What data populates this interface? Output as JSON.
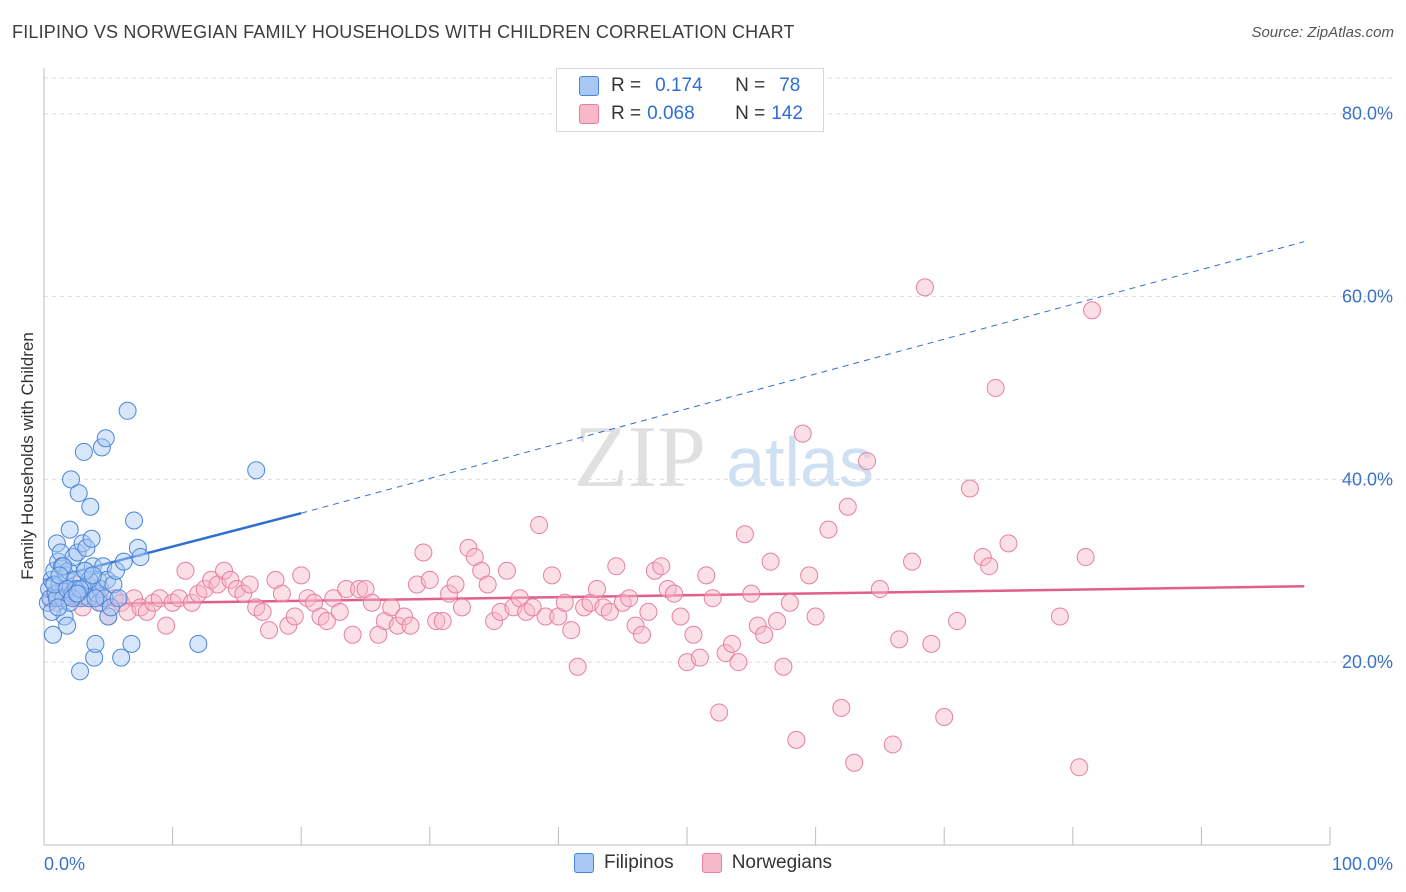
{
  "title": "FILIPINO VS NORWEGIAN FAMILY HOUSEHOLDS WITH CHILDREN CORRELATION CHART",
  "source": "Source: ZipAtlas.com",
  "watermark": {
    "zip": "ZIP",
    "atlas": "atlas"
  },
  "legend_top": [
    {
      "r_label": "R =",
      "r_value": "0.174",
      "n_label": "N =",
      "n_value": "78"
    },
    {
      "r_label": "R =",
      "r_value": "0.068",
      "n_label": "N =",
      "n_value": "142"
    }
  ],
  "legend_bottom": [
    {
      "label": "Filipinos"
    },
    {
      "label": "Norwegians"
    }
  ],
  "colors": {
    "filipino_fill": "#a8c8f5",
    "filipino_stroke": "#4a86d8",
    "filipino_line": "#2f6fd0",
    "norwegian_fill": "#f7b8ca",
    "norwegian_stroke": "#e87fa0",
    "norwegian_line": "#e0608a",
    "axis_text": "#3a72c8"
  },
  "chart_data": {
    "type": "scatter",
    "title": "FILIPINO VS NORWEGIAN FAMILY HOUSEHOLDS WITH CHILDREN CORRELATION CHART",
    "xlabel": "",
    "ylabel": "Family Households with Children",
    "xlim": [
      0,
      100
    ],
    "ylim": [
      0,
      85
    ],
    "x_tick_labels": [
      "0.0%",
      "100.0%"
    ],
    "y_ticks": [
      20,
      40,
      60,
      80
    ],
    "y_tick_labels": [
      "20.0%",
      "40.0%",
      "60.0%",
      "80.0%"
    ],
    "grid": true,
    "series": [
      {
        "name": "Filipinos",
        "trend": {
          "x0": 0,
          "y0": 29.0,
          "x1": 20,
          "y1": 36.3,
          "dashed_to_x": 98,
          "dashed_to_y": 66.0
        },
        "points": [
          [
            0.3,
            26.5
          ],
          [
            0.4,
            28.0
          ],
          [
            0.5,
            27.0
          ],
          [
            0.6,
            29.0
          ],
          [
            0.7,
            23.0
          ],
          [
            0.8,
            30.0
          ],
          [
            0.9,
            27.5
          ],
          [
            1.0,
            33.0
          ],
          [
            1.1,
            31.0
          ],
          [
            1.2,
            28.5
          ],
          [
            1.3,
            32.0
          ],
          [
            1.4,
            30.5
          ],
          [
            1.5,
            27.0
          ],
          [
            1.6,
            25.0
          ],
          [
            1.7,
            29.5
          ],
          [
            1.8,
            24.0
          ],
          [
            1.9,
            30.0
          ],
          [
            2.0,
            34.5
          ],
          [
            2.1,
            40.0
          ],
          [
            2.2,
            27.5
          ],
          [
            2.3,
            31.5
          ],
          [
            2.4,
            29.0
          ],
          [
            2.5,
            28.0
          ],
          [
            2.6,
            32.0
          ],
          [
            2.7,
            38.5
          ],
          [
            2.8,
            19.0
          ],
          [
            2.9,
            27.0
          ],
          [
            3.0,
            33.0
          ],
          [
            3.1,
            43.0
          ],
          [
            3.2,
            30.0
          ],
          [
            3.3,
            32.5
          ],
          [
            3.4,
            28.5
          ],
          [
            3.5,
            27.0
          ],
          [
            3.6,
            37.0
          ],
          [
            3.7,
            33.5
          ],
          [
            3.8,
            30.5
          ],
          [
            3.9,
            20.5
          ],
          [
            4.0,
            22.0
          ],
          [
            4.1,
            27.5
          ],
          [
            4.2,
            29.0
          ],
          [
            4.3,
            26.5
          ],
          [
            4.4,
            28.0
          ],
          [
            4.5,
            43.5
          ],
          [
            4.6,
            30.5
          ],
          [
            4.7,
            27.0
          ],
          [
            4.8,
            44.5
          ],
          [
            4.9,
            29.0
          ],
          [
            5.0,
            25.0
          ],
          [
            5.2,
            26.0
          ],
          [
            5.4,
            28.5
          ],
          [
            5.6,
            30.0
          ],
          [
            5.8,
            27.0
          ],
          [
            6.0,
            20.5
          ],
          [
            6.2,
            31.0
          ],
          [
            6.5,
            47.5
          ],
          [
            6.8,
            22.0
          ],
          [
            7.0,
            35.5
          ],
          [
            7.3,
            32.5
          ],
          [
            7.5,
            31.5
          ],
          [
            12.0,
            22.0
          ],
          [
            16.5,
            41.0
          ],
          [
            0.6,
            25.5
          ],
          [
            1.0,
            27.0
          ],
          [
            1.5,
            30.5
          ],
          [
            2.0,
            26.5
          ],
          [
            2.5,
            27.5
          ],
          [
            3.0,
            28.0
          ],
          [
            3.5,
            29.0
          ],
          [
            4.0,
            27.0
          ],
          [
            0.8,
            28.5
          ],
          [
            1.2,
            29.5
          ],
          [
            1.8,
            28.0
          ],
          [
            2.2,
            27.0
          ],
          [
            2.8,
            28.0
          ],
          [
            3.2,
            30.0
          ],
          [
            1.1,
            26.0
          ],
          [
            2.6,
            27.5
          ],
          [
            3.8,
            29.5
          ]
        ]
      },
      {
        "name": "Norwegians",
        "trend": {
          "x0": 0,
          "y0": 26.3,
          "x1": 98,
          "y1": 28.3
        },
        "points": [
          [
            0.5,
            27.0
          ],
          [
            1.0,
            26.5
          ],
          [
            1.5,
            28.0
          ],
          [
            2.0,
            27.5
          ],
          [
            2.5,
            28.5
          ],
          [
            3.0,
            26.0
          ],
          [
            3.5,
            27.0
          ],
          [
            4.0,
            28.0
          ],
          [
            4.5,
            26.5
          ],
          [
            5.0,
            25.0
          ],
          [
            5.5,
            27.0
          ],
          [
            6.0,
            26.5
          ],
          [
            6.5,
            25.5
          ],
          [
            7.0,
            27.0
          ],
          [
            7.5,
            26.0
          ],
          [
            8.0,
            25.5
          ],
          [
            8.5,
            26.5
          ],
          [
            9.0,
            27.0
          ],
          [
            9.5,
            24.0
          ],
          [
            10.0,
            26.5
          ],
          [
            10.5,
            27.0
          ],
          [
            11.0,
            30.0
          ],
          [
            11.5,
            26.5
          ],
          [
            12.0,
            27.5
          ],
          [
            12.5,
            28.0
          ],
          [
            13.0,
            29.0
          ],
          [
            13.5,
            28.5
          ],
          [
            14.0,
            30.0
          ],
          [
            14.5,
            29.0
          ],
          [
            15.0,
            28.0
          ],
          [
            15.5,
            27.5
          ],
          [
            16.0,
            28.5
          ],
          [
            16.5,
            26.0
          ],
          [
            17.0,
            25.5
          ],
          [
            17.5,
            23.5
          ],
          [
            18.0,
            29.0
          ],
          [
            18.5,
            27.5
          ],
          [
            19.0,
            24.0
          ],
          [
            19.5,
            25.0
          ],
          [
            20.0,
            29.5
          ],
          [
            20.5,
            27.0
          ],
          [
            21.0,
            26.5
          ],
          [
            21.5,
            25.0
          ],
          [
            22.0,
            24.5
          ],
          [
            22.5,
            27.0
          ],
          [
            23.0,
            25.5
          ],
          [
            23.5,
            28.0
          ],
          [
            24.0,
            23.0
          ],
          [
            24.5,
            28.0
          ],
          [
            25.0,
            28.0
          ],
          [
            25.5,
            26.5
          ],
          [
            26.0,
            23.0
          ],
          [
            26.5,
            24.5
          ],
          [
            27.0,
            26.0
          ],
          [
            27.5,
            24.0
          ],
          [
            28.0,
            25.0
          ],
          [
            28.5,
            24.0
          ],
          [
            29.0,
            28.5
          ],
          [
            29.5,
            32.0
          ],
          [
            30.0,
            29.0
          ],
          [
            30.5,
            24.5
          ],
          [
            31.0,
            24.5
          ],
          [
            31.5,
            27.5
          ],
          [
            32.0,
            28.5
          ],
          [
            32.5,
            26.0
          ],
          [
            33.0,
            32.5
          ],
          [
            33.5,
            31.5
          ],
          [
            34.0,
            30.0
          ],
          [
            34.5,
            28.5
          ],
          [
            35.0,
            24.5
          ],
          [
            35.5,
            25.5
          ],
          [
            36.0,
            30.0
          ],
          [
            36.5,
            26.0
          ],
          [
            37.0,
            27.0
          ],
          [
            37.5,
            25.5
          ],
          [
            38.0,
            26.0
          ],
          [
            38.5,
            35.0
          ],
          [
            39.0,
            25.0
          ],
          [
            39.5,
            29.5
          ],
          [
            40.0,
            25.0
          ],
          [
            40.5,
            26.5
          ],
          [
            41.0,
            23.5
          ],
          [
            41.5,
            19.5
          ],
          [
            42.0,
            26.0
          ],
          [
            42.5,
            26.5
          ],
          [
            43.0,
            28.0
          ],
          [
            43.5,
            26.0
          ],
          [
            44.0,
            25.5
          ],
          [
            44.5,
            30.5
          ],
          [
            45.0,
            26.5
          ],
          [
            45.5,
            27.0
          ],
          [
            46.0,
            24.0
          ],
          [
            46.5,
            23.0
          ],
          [
            47.0,
            25.5
          ],
          [
            47.5,
            30.0
          ],
          [
            48.0,
            30.5
          ],
          [
            48.5,
            28.0
          ],
          [
            49.0,
            27.5
          ],
          [
            49.5,
            25.0
          ],
          [
            50.0,
            20.0
          ],
          [
            50.5,
            23.0
          ],
          [
            51.0,
            20.5
          ],
          [
            51.5,
            29.5
          ],
          [
            52.0,
            27.0
          ],
          [
            52.5,
            14.5
          ],
          [
            53.0,
            21.0
          ],
          [
            53.5,
            22.0
          ],
          [
            54.0,
            20.0
          ],
          [
            54.5,
            34.0
          ],
          [
            55.0,
            27.5
          ],
          [
            55.5,
            24.0
          ],
          [
            56.0,
            23.0
          ],
          [
            56.5,
            31.0
          ],
          [
            57.0,
            24.5
          ],
          [
            57.5,
            19.5
          ],
          [
            58.0,
            26.5
          ],
          [
            58.5,
            11.5
          ],
          [
            59.0,
            45.0
          ],
          [
            59.5,
            29.5
          ],
          [
            60.0,
            25.0
          ],
          [
            61.0,
            34.5
          ],
          [
            62.0,
            15.0
          ],
          [
            62.5,
            37.0
          ],
          [
            63.0,
            9.0
          ],
          [
            64.0,
            42.0
          ],
          [
            65.0,
            28.0
          ],
          [
            66.0,
            11.0
          ],
          [
            66.5,
            22.5
          ],
          [
            67.5,
            31.0
          ],
          [
            68.5,
            61.0
          ],
          [
            69.0,
            22.0
          ],
          [
            70.0,
            14.0
          ],
          [
            71.0,
            24.5
          ],
          [
            72.0,
            39.0
          ],
          [
            73.0,
            31.5
          ],
          [
            73.5,
            30.5
          ],
          [
            74.0,
            50.0
          ],
          [
            75.0,
            33.0
          ],
          [
            79.0,
            25.0
          ],
          [
            80.5,
            8.5
          ],
          [
            81.0,
            31.5
          ],
          [
            81.5,
            58.5
          ]
        ]
      }
    ]
  }
}
